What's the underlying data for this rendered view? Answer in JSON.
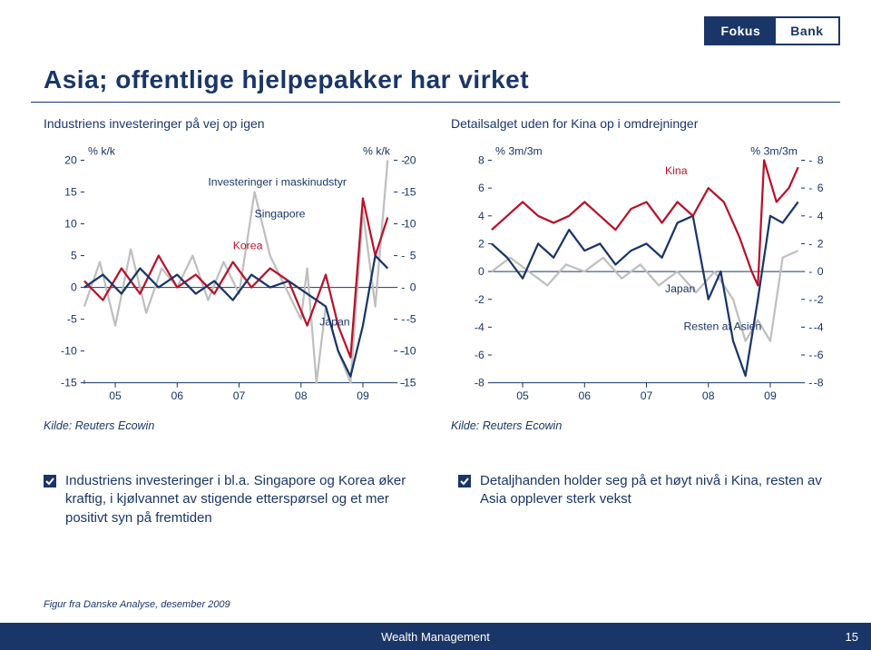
{
  "logo": {
    "left": "Fokus",
    "right": "Bank"
  },
  "title": "Asia; offentlige hjelpepakker har virket",
  "chart1": {
    "title": "Industriens investeringer på vej op igen",
    "ylabel": "% k/k",
    "ylabel_right": "% k/k",
    "series_label": "Investeringer i maskinudstyr",
    "yticks": [
      20,
      15,
      10,
      5,
      0,
      -5,
      -10,
      -15
    ],
    "xticks": [
      "05",
      "06",
      "07",
      "08",
      "09"
    ],
    "source": "Kilde: Reuters Ecowin",
    "labels": {
      "singapore": "Singapore",
      "korea": "Korea",
      "japan": "Japan"
    },
    "colors": {
      "singapore": "#bfbfbf",
      "korea": "#b9122b",
      "japan": "#1a3668",
      "axis": "#1a3668",
      "tick": "#1a3668"
    },
    "line_width": 2.2,
    "singapore_path": [
      [
        0,
        -3
      ],
      [
        5,
        4
      ],
      [
        10,
        -6
      ],
      [
        15,
        6
      ],
      [
        20,
        -4
      ],
      [
        25,
        3
      ],
      [
        30,
        0
      ],
      [
        35,
        5
      ],
      [
        40,
        -2
      ],
      [
        45,
        4
      ],
      [
        50,
        -1
      ],
      [
        55,
        15
      ],
      [
        60,
        5
      ],
      [
        65,
        0
      ],
      [
        70,
        -5
      ],
      [
        72,
        3
      ],
      [
        75,
        -15
      ],
      [
        78,
        -3
      ],
      [
        82,
        -10
      ],
      [
        86,
        -15
      ],
      [
        90,
        12
      ],
      [
        94,
        -3
      ],
      [
        98,
        20
      ]
    ],
    "korea_path": [
      [
        0,
        1
      ],
      [
        6,
        -2
      ],
      [
        12,
        3
      ],
      [
        18,
        -1
      ],
      [
        24,
        5
      ],
      [
        30,
        0
      ],
      [
        36,
        2
      ],
      [
        42,
        -1
      ],
      [
        48,
        4
      ],
      [
        54,
        0
      ],
      [
        60,
        3
      ],
      [
        66,
        1
      ],
      [
        72,
        -6
      ],
      [
        78,
        2
      ],
      [
        82,
        -6
      ],
      [
        86,
        -11
      ],
      [
        90,
        14
      ],
      [
        94,
        5
      ],
      [
        98,
        11
      ]
    ],
    "japan_path": [
      [
        0,
        0
      ],
      [
        6,
        2
      ],
      [
        12,
        -1
      ],
      [
        18,
        3
      ],
      [
        24,
        0
      ],
      [
        30,
        2
      ],
      [
        36,
        -1
      ],
      [
        42,
        1
      ],
      [
        48,
        -2
      ],
      [
        54,
        2
      ],
      [
        60,
        0
      ],
      [
        66,
        1
      ],
      [
        72,
        -1
      ],
      [
        78,
        -3
      ],
      [
        82,
        -10
      ],
      [
        86,
        -14
      ],
      [
        90,
        -6
      ],
      [
        94,
        5
      ],
      [
        98,
        3
      ]
    ],
    "ylim": [
      -15,
      20
    ]
  },
  "chart2": {
    "title": "Detailsalget uden for Kina op i omdrejninger",
    "ylabel": "% 3m/3m",
    "ylabel_right": "% 3m/3m",
    "yticks": [
      8,
      6,
      4,
      2,
      0,
      -2,
      -4,
      -6,
      -8
    ],
    "xticks": [
      "05",
      "06",
      "07",
      "08",
      "09"
    ],
    "source": "Kilde: Reuters Ecowin",
    "labels": {
      "kina": "Kina",
      "japan": "Japan",
      "rest": "Resten af Asien"
    },
    "colors": {
      "kina": "#b9122b",
      "japan": "#bfbfbf",
      "rest": "#1a3668",
      "axis": "#1a3668"
    },
    "line_width": 2.2,
    "kina_path": [
      [
        0,
        3
      ],
      [
        5,
        4
      ],
      [
        10,
        5
      ],
      [
        15,
        4
      ],
      [
        20,
        3.5
      ],
      [
        25,
        4
      ],
      [
        30,
        5
      ],
      [
        35,
        4
      ],
      [
        40,
        3
      ],
      [
        45,
        4.5
      ],
      [
        50,
        5
      ],
      [
        55,
        3.5
      ],
      [
        60,
        5
      ],
      [
        65,
        4
      ],
      [
        70,
        6
      ],
      [
        75,
        5
      ],
      [
        80,
        2.5
      ],
      [
        84,
        0
      ],
      [
        86,
        -1
      ],
      [
        88,
        8
      ],
      [
        92,
        5
      ],
      [
        96,
        6
      ],
      [
        99,
        7.5
      ]
    ],
    "japan_path": [
      [
        0,
        0
      ],
      [
        6,
        1
      ],
      [
        12,
        0
      ],
      [
        18,
        -1
      ],
      [
        24,
        0.5
      ],
      [
        30,
        0
      ],
      [
        36,
        1
      ],
      [
        42,
        -0.5
      ],
      [
        48,
        0.5
      ],
      [
        54,
        -1
      ],
      [
        60,
        0
      ],
      [
        66,
        -1.5
      ],
      [
        72,
        0
      ],
      [
        78,
        -2
      ],
      [
        82,
        -5
      ],
      [
        86,
        -3.5
      ],
      [
        90,
        -5
      ],
      [
        94,
        1
      ],
      [
        99,
        1.5
      ]
    ],
    "rest_path": [
      [
        0,
        2
      ],
      [
        5,
        1
      ],
      [
        10,
        -0.5
      ],
      [
        15,
        2
      ],
      [
        20,
        1
      ],
      [
        25,
        3
      ],
      [
        30,
        1.5
      ],
      [
        35,
        2
      ],
      [
        40,
        0.5
      ],
      [
        45,
        1.5
      ],
      [
        50,
        2
      ],
      [
        55,
        1
      ],
      [
        60,
        3.5
      ],
      [
        65,
        4
      ],
      [
        70,
        -2
      ],
      [
        74,
        0
      ],
      [
        78,
        -5
      ],
      [
        82,
        -7.5
      ],
      [
        86,
        -2
      ],
      [
        90,
        4
      ],
      [
        94,
        3.5
      ],
      [
        99,
        5
      ]
    ],
    "ylim": [
      -8,
      8
    ]
  },
  "bullets": {
    "left": "Industriens investeringer i bl.a. Singapore og Korea øker kraftig, i kjølvannet av stigende etterspørsel og et mer positivt syn på fremtiden",
    "right": "Detaljhanden holder seg på et høyt nivå i Kina, resten av Asia opplever sterk vekst",
    "icon_color": "#1a3668"
  },
  "figure_credit": "Figur fra Danske Analyse, desember 2009",
  "footer": {
    "title": "Wealth Management",
    "page": "15",
    "bg": "#1a3668"
  }
}
